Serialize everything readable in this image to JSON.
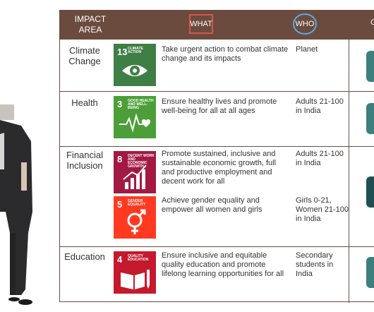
{
  "header": {
    "impact_area": "IMPACT AREA",
    "what": "WHAT",
    "who": "WHO"
  },
  "colors": {
    "header_bg": "#6b4b3e",
    "what_outline": "#d9534f",
    "who_outline": "#5aa9e6"
  },
  "rows": [
    {
      "area": "Climate Change",
      "goals": [
        {
          "num": "13",
          "title": "CLIMATE ACTION",
          "color": "#3f7e44",
          "icon": "eye-globe-icon",
          "what": "Take urgent action to combat climate change and its impacts",
          "who": "Planet"
        }
      ]
    },
    {
      "area": "Health",
      "goals": [
        {
          "num": "3",
          "title": "GOOD HEALTH AND WELL-BEING",
          "color": "#4c9f38",
          "icon": "heartbeat-icon",
          "what": "Ensure healthy lives and promote well-being for all at all ages",
          "who": "Adults 21-100 in India"
        }
      ]
    },
    {
      "area": "Financial Inclusion",
      "goals": [
        {
          "num": "8",
          "title": "DECENT WORK AND ECONOMIC GROWTH",
          "color": "#a21942",
          "icon": "growth-chart-icon",
          "what": "Promote sustained, inclusive and sustainable economic growth, full and productive employment and decent work for all",
          "who": "Adults 21-100 in India"
        },
        {
          "num": "5",
          "title": "GENDER EQUALITY",
          "color": "#ff3a21",
          "icon": "gender-equality-icon",
          "what": "Achieve gender equality and empower all women and girls",
          "who": "Girls 0-21, Women 21-100 in India"
        }
      ]
    },
    {
      "area": "Education",
      "goals": [
        {
          "num": "4",
          "title": "QUALITY EDUCATION",
          "color": "#c5192d",
          "icon": "book-pencil-icon",
          "what": "Ensure inclusive and equitable quality education and promote lifelong learning opportunities for all",
          "who": "Secondary students in India"
        }
      ]
    }
  ]
}
